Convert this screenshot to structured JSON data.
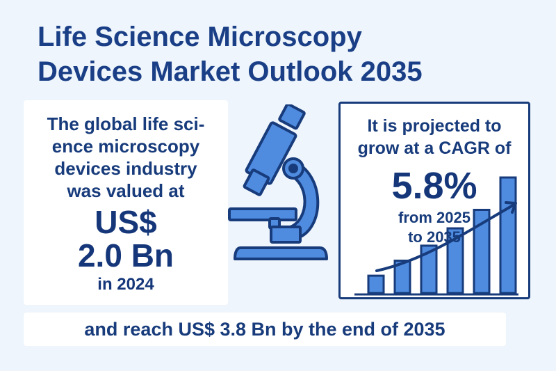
{
  "header": {
    "title_line1": "Life Science Microscopy",
    "title_line2": "Devices Market Outlook 2035"
  },
  "market_value": {
    "line1": "The global life sci-",
    "line2": "ence microscopy",
    "line3": "devices industry",
    "line4": "was valued at",
    "currency": "US$",
    "amount": "2.0 Bn",
    "year": "in 2024"
  },
  "projection": {
    "line1": "It is projected to",
    "line2": "grow at a CAGR of",
    "cagr": "5.8%",
    "period_line1": "from 2025",
    "period_line2": "to 2035",
    "bar_levels": [
      0.15,
      0.28,
      0.41,
      0.56,
      0.72,
      1.0
    ]
  },
  "footer": {
    "text": "and reach US$ 3.8 Bn by the end of 2035"
  },
  "icons": {
    "microscope": "microscope-icon",
    "growth": "growth-chart-icon"
  },
  "colors": {
    "primary": "#15377a",
    "accent": "#4a86df",
    "background": "#eef5fc"
  }
}
